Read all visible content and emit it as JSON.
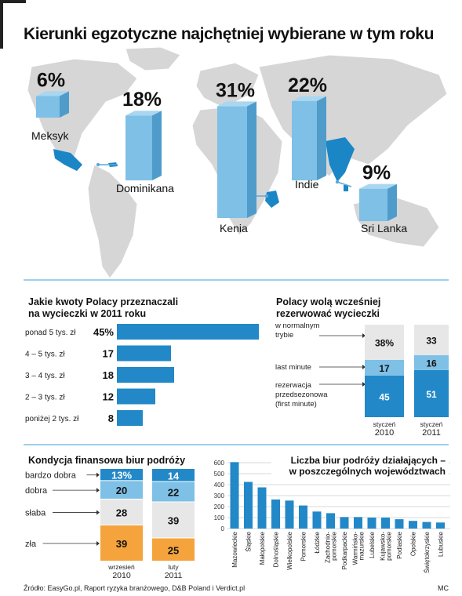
{
  "title": "Kierunki egzotyczne najchętniej wybierane w tym roku",
  "source": "Źródło: EasyGo.pl, Raport ryzyka branżowego, D&B Poland i Verdict.pl",
  "credit": "MC",
  "colors": {
    "bar": "#2288c8",
    "bar_light": "#7ec0e6",
    "grey": "#e7e7e7",
    "orange": "#f5a33d",
    "map": "#d6d6d6",
    "map_highlight": "#1a86c6"
  },
  "chart_data": [
    {
      "type": "bar",
      "title": "Kierunki egzotyczne najchętniej wybierane w tym roku",
      "categories": [
        "Meksyk",
        "Dominikana",
        "Kenia",
        "Indie",
        "Sri Lanka"
      ],
      "values": [
        6,
        18,
        31,
        22,
        9
      ],
      "labels": [
        "6%",
        "18%",
        "31%",
        "22%",
        "9%"
      ]
    },
    {
      "type": "bar",
      "title": "Jakie kwoty Polacy przeznaczali na wycieczki w 2011 roku",
      "categories": [
        "ponad 5 tys. zł",
        "4 – 5 tys. zł",
        "3 – 4 tys. zł",
        "2 – 3 tys. zł",
        "poniżej 2 tys. zł"
      ],
      "values": [
        45,
        17,
        18,
        12,
        8
      ],
      "labels": [
        "45%",
        "17",
        "18",
        "12",
        "8"
      ]
    },
    {
      "type": "bar",
      "title": "Polacy wolą wcześniej rezerwować wycieczki",
      "categories": [
        "styczeń 2010",
        "styczeń 2011"
      ],
      "series": [
        {
          "name": "rezerwacja przedsezonowa (first minute)",
          "values": [
            45,
            51
          ]
        },
        {
          "name": "last minute",
          "values": [
            17,
            16
          ]
        },
        {
          "name": "w normalnym trybie",
          "values": [
            38,
            33
          ]
        }
      ],
      "value_labels": [
        [
          "45",
          "17",
          "38%"
        ],
        [
          "51",
          "16",
          "33"
        ]
      ]
    },
    {
      "type": "bar",
      "title": "Kondycja finansowa biur podróży",
      "categories": [
        "wrzesień 2010",
        "luty 2011"
      ],
      "series": [
        {
          "name": "zła",
          "values": [
            39,
            25
          ]
        },
        {
          "name": "słaba",
          "values": [
            28,
            39
          ]
        },
        {
          "name": "dobra",
          "values": [
            20,
            22
          ]
        },
        {
          "name": "bardzo dobra",
          "values": [
            13,
            14
          ]
        }
      ],
      "value_labels": [
        [
          "39",
          "28",
          "20",
          "13%"
        ],
        [
          "25",
          "39",
          "22",
          "14"
        ]
      ]
    },
    {
      "type": "bar",
      "title": "Liczba biur podróży działających – w poszczególnych województwach",
      "categories": [
        "Mazowieckie",
        "Śląskie",
        "Małopolskie",
        "Dolnośląskie",
        "Wielkopolskie",
        "Pomorskie",
        "Łódzkie",
        "Zachodnio-pomorskie",
        "Podkarpackie",
        "Warmińsko-mazurskie",
        "Lubelskie",
        "Kujawsko-pomorskie",
        "Podlaskie",
        "Opolskie",
        "Świętokrzyskie",
        "Lubuskie"
      ],
      "values": [
        605,
        425,
        375,
        265,
        255,
        210,
        155,
        140,
        105,
        105,
        100,
        100,
        85,
        70,
        60,
        55
      ],
      "yticks": [
        "0",
        "100",
        "200",
        "300",
        "400",
        "500",
        "600"
      ],
      "ylim": [
        0,
        650
      ],
      "grid": true
    }
  ],
  "ui": {
    "amounts_title": [
      "Jakie kwoty Polacy przeznaczali",
      "na wycieczki w 2011 roku"
    ],
    "booking_title": [
      "Polacy wolą wcześniej",
      "rezerwować wycieczki"
    ],
    "booking_legend": [
      "w normalnym",
      "trybie",
      "last minute",
      "rezerwacja",
      "przedsezonowa",
      "(first minute)"
    ],
    "booking_xlabels": [
      [
        "styczeń",
        "2010"
      ],
      [
        "styczeń",
        "2011"
      ]
    ],
    "finance_title": "Kondycja finansowa biur podróży",
    "finance_xlabels": [
      [
        "wrzesień",
        "2010"
      ],
      [
        "luty",
        "2011"
      ]
    ],
    "regions_title": [
      "Liczba biur podróży działających –",
      "w poszczególnych województwach"
    ],
    "region_labels": [
      [
        "Mazowieckie"
      ],
      [
        "Śląskie"
      ],
      [
        "Małopolskie"
      ],
      [
        "Dolnośląskie"
      ],
      [
        "Wielkopolskie"
      ],
      [
        "Pomorskie"
      ],
      [
        "Łódzkie"
      ],
      [
        "Zachodnio-",
        "pomorskie"
      ],
      [
        "Podkarpackie"
      ],
      [
        "Warmińsko-",
        "mazurskie"
      ],
      [
        "Lubelskie"
      ],
      [
        "Kujawsko-",
        "pomorskie"
      ],
      [
        "Podlaskie"
      ],
      [
        "Opolskie"
      ],
      [
        "Świętokrzyskie"
      ],
      [
        "Lubuskie"
      ]
    ]
  }
}
